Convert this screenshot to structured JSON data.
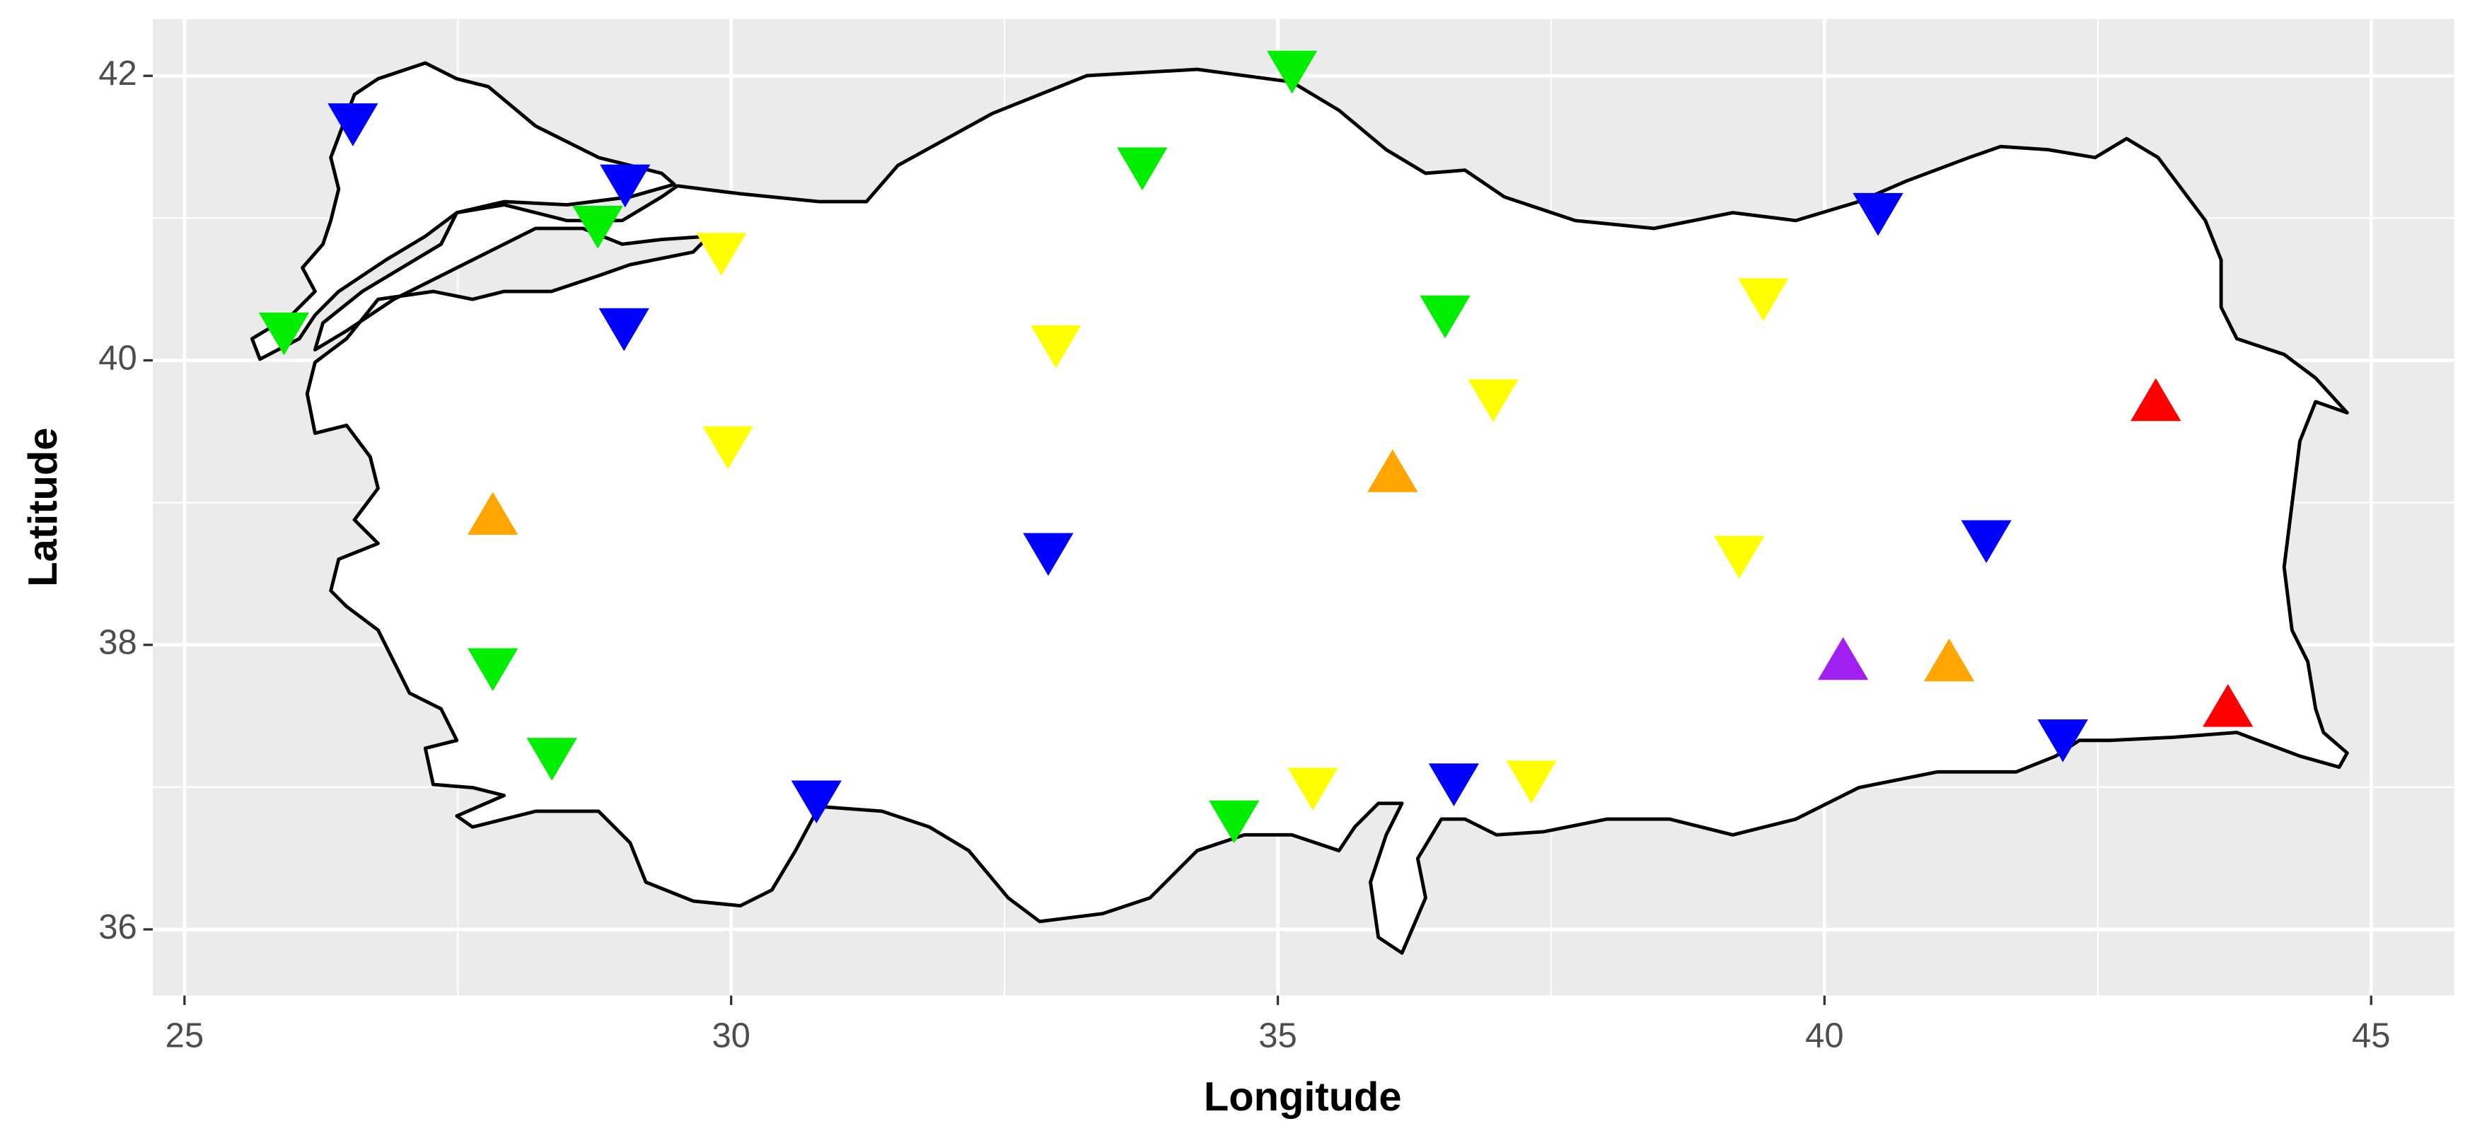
{
  "chart_data": {
    "type": "scatter",
    "x_label": "Longitude",
    "y_label": "Latitude",
    "xlim": [
      24.71,
      45.76
    ],
    "ylim": [
      35.535,
      42.4
    ],
    "xticks": [
      25,
      30,
      35,
      40,
      45
    ],
    "yticks": [
      36,
      38,
      40,
      42
    ],
    "grid": true,
    "minor_grid": true,
    "background": "#ebebeb",
    "series": [
      {
        "color": "#0000ff",
        "shape": "triangle-down",
        "x": [
          26.54,
          29.03,
          29.02,
          32.9,
          30.78,
          40.49,
          41.48,
          42.18,
          36.61
        ],
        "y": [
          41.7,
          41.27,
          40.26,
          38.68,
          36.94,
          41.07,
          38.77,
          37.37,
          37.06
        ]
      },
      {
        "color": "#00ee00",
        "shape": "triangle-down",
        "x": [
          25.91,
          28.78,
          27.82,
          28.36,
          33.76,
          35.13,
          36.53,
          34.6
        ],
        "y": [
          40.23,
          40.98,
          37.87,
          37.24,
          41.39,
          42.07,
          40.35,
          36.8
        ]
      },
      {
        "color": "#ffff00",
        "shape": "triangle-down",
        "x": [
          29.91,
          29.97,
          32.97,
          36.97,
          39.44,
          39.22,
          35.32,
          37.32
        ],
        "y": [
          40.79,
          39.43,
          40.14,
          39.76,
          40.47,
          38.66,
          37.03,
          37.08
        ]
      },
      {
        "color": "#ffa500",
        "shape": "triangle-up",
        "x": [
          27.82,
          36.05,
          41.14
        ],
        "y": [
          38.88,
          39.18,
          37.85
        ]
      },
      {
        "color": "#ff0000",
        "shape": "triangle-up",
        "x": [
          43.03,
          43.69
        ],
        "y": [
          39.68,
          37.53
        ]
      },
      {
        "color": "#a020f0",
        "shape": "triangle-up",
        "x": [
          40.17
        ],
        "y": [
          37.86
        ]
      }
    ]
  }
}
